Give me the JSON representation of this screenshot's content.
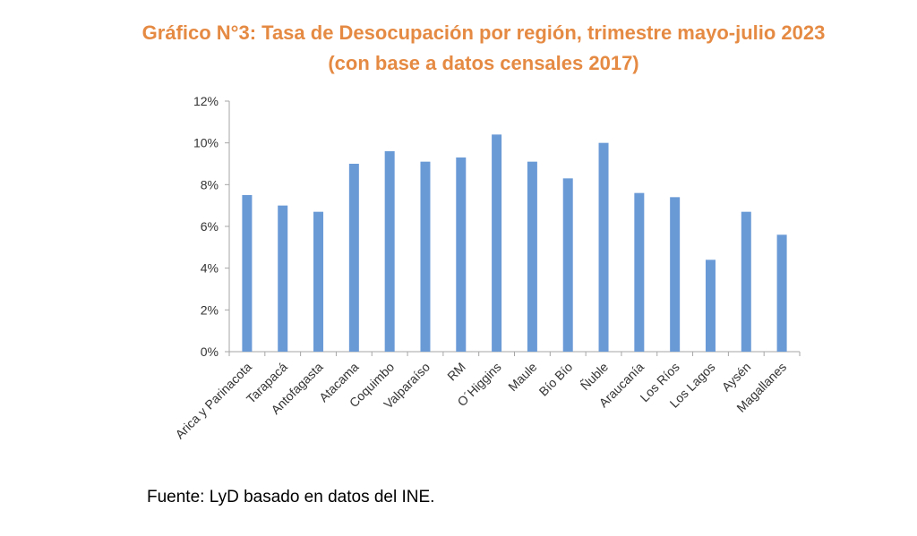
{
  "chart_data": {
    "type": "bar",
    "title_line1": "Gráfico N°3: Tasa de Desocupación por región, trimestre mayo-julio 2023",
    "title_line2": "(con base a datos censales 2017)",
    "xlabel": "",
    "ylabel": "",
    "ylim": [
      0,
      12
    ],
    "yticks": [
      0,
      2,
      4,
      6,
      8,
      10,
      12
    ],
    "ytick_labels": [
      "0%",
      "2%",
      "4%",
      "6%",
      "8%",
      "10%",
      "12%"
    ],
    "categories": [
      "Arica y Parinacota",
      "Tarapacá",
      "Antofagasta",
      "Atacama",
      "Coquimbo",
      "Valparaíso",
      "RM",
      "O´Higgins",
      "Maule",
      "Bío Bío",
      "Ñuble",
      "Araucanía",
      "Los Ríos",
      "Los Lagos",
      "Aysén",
      "Magallanes"
    ],
    "values": [
      7.5,
      7.0,
      6.7,
      9.0,
      9.6,
      9.1,
      9.3,
      10.4,
      9.1,
      8.3,
      10.0,
      7.6,
      7.4,
      4.4,
      6.7,
      5.6
    ],
    "bar_color": "#6a9ad6",
    "grid": false
  },
  "source": "Fuente: LyD basado en datos del INE.",
  "colors": {
    "title": "#e58a43",
    "axis": "#a6a6a6"
  }
}
